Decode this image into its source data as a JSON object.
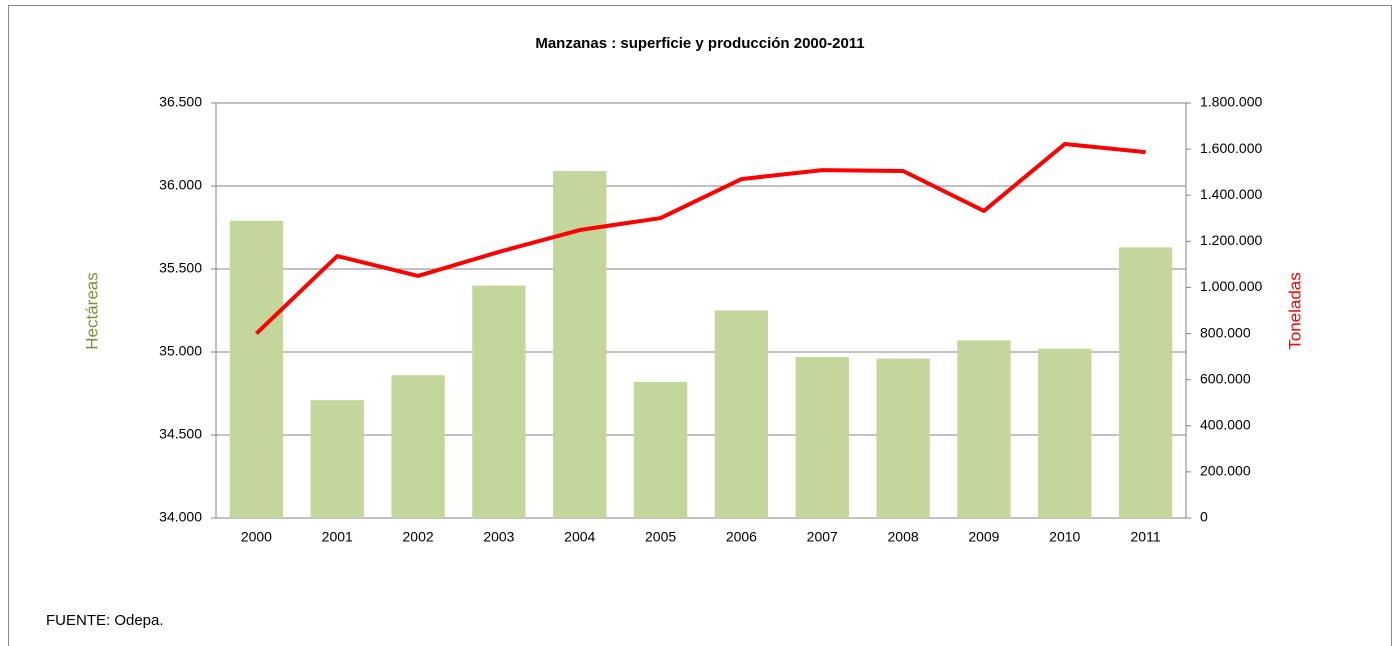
{
  "chart_data": {
    "type": "bar",
    "title": "Manzanas : superficie y producción 2000-2011",
    "ylabel": "Hectáreas",
    "y2label": "Toneladas",
    "note": "FUENTE: Odepa.",
    "categories": [
      "2000",
      "2001",
      "2002",
      "2003",
      "2004",
      "2005",
      "2006",
      "2007",
      "2008",
      "2009",
      "2010",
      "2011"
    ],
    "series": [
      {
        "type": "bar",
        "color": "#c3d69b",
        "axis": "y",
        "values": [
          35790,
          34710,
          34860,
          35400,
          36090,
          34820,
          35250,
          34970,
          34960,
          35070,
          35020,
          35630
        ]
      },
      {
        "type": "line",
        "color": "#ff0000",
        "axis": "y2",
        "values": [
          800000,
          1136000,
          1050000,
          1154000,
          1249000,
          1301000,
          1470000,
          1509000,
          1505000,
          1332000,
          1622000,
          1587000
        ]
      }
    ],
    "ylim": [
      34000,
      36500
    ],
    "yticks": [
      {
        "value": 34000,
        "label": "34.000"
      },
      {
        "value": 34500,
        "label": "34.500"
      },
      {
        "value": 35000,
        "label": "35.000"
      },
      {
        "value": 35500,
        "label": "35.500"
      },
      {
        "value": 36000,
        "label": "36.000"
      },
      {
        "value": 36500,
        "label": "36.500"
      }
    ],
    "y2lim": [
      0,
      1800000
    ],
    "y2ticks": [
      0,
      {
        "value": 200000,
        "label": "200.000"
      },
      {
        "value": 400000,
        "label": "400.000"
      },
      {
        "value": 600000,
        "label": "600.000"
      },
      {
        "value": 800000,
        "label": "800.000"
      },
      {
        "value": 1000000,
        "label": "1.000.000"
      },
      {
        "value": 1200000,
        "label": "1.200.000"
      },
      {
        "value": 1400000,
        "label": "1.400.000"
      },
      {
        "value": 1600000,
        "label": "1.600.000"
      },
      {
        "value": 1800000,
        "label": "1.800.000"
      }
    ],
    "grid": true
  }
}
